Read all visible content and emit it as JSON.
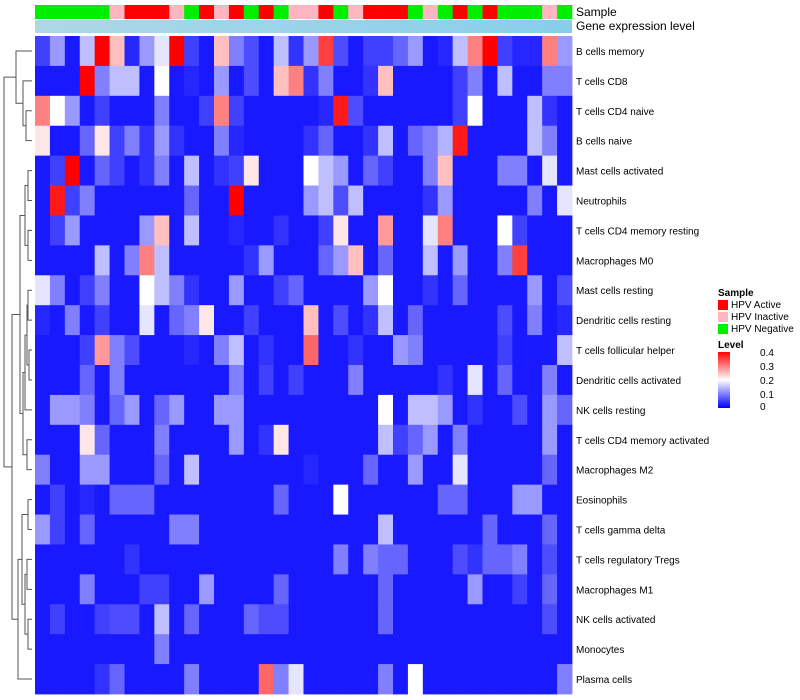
{
  "chart_data": {
    "type": "heatmap",
    "annotation_titles": [
      "Sample",
      "Gene expression level"
    ],
    "rows": [
      "B cells memory",
      "T cells CD8",
      "T cells CD4 naive",
      "B cells naive",
      "Mast cells activated",
      "Neutrophils",
      "T cells CD4 memory resting",
      "Macrophages M0",
      "Mast cells resting",
      "Dendritic cells resting",
      "T cells follicular helper",
      "Dendritic cells activated",
      "NK cells resting",
      "T cells CD4 memory activated",
      "Macrophages M2",
      "Eosinophils",
      "T cells gamma delta",
      "T cells regulatory  Tregs",
      "Macrophages M1",
      "NK cells activated",
      "Monocytes",
      "Plasma cells"
    ],
    "sample_groups": [
      "HPV Negative",
      "HPV Negative",
      "HPV Negative",
      "HPV Negative",
      "HPV Negative",
      "HPV Inactive",
      "HPV Active",
      "HPV Active",
      "HPV Active",
      "HPV Inactive",
      "HPV Negative",
      "HPV Active",
      "HPV Inactive",
      "HPV Active",
      "HPV Negative",
      "HPV Active",
      "HPV Negative",
      "HPV Inactive",
      "HPV Inactive",
      "HPV Active",
      "HPV Negative",
      "HPV Inactive",
      "HPV Active",
      "HPV Active",
      "HPV Active",
      "HPV Negative",
      "HPV Inactive",
      "HPV Negative",
      "HPV Active",
      "HPV Negative",
      "HPV Active",
      "HPV Negative",
      "HPV Negative",
      "HPV Negative",
      "HPV Inactive",
      "HPV Negative"
    ],
    "values": [
      [
        0.05,
        0.12,
        0.02,
        0.15,
        0.4,
        0.25,
        0.03,
        0.12,
        0.18,
        0.4,
        0.05,
        0.02,
        0.25,
        0.1,
        0.06,
        0.02,
        0.15,
        0.04,
        0.12,
        0.35,
        0.06,
        0.02,
        0.05,
        0.05,
        0.08,
        0.12,
        0.02,
        0.03,
        0.15,
        0.3,
        0.4,
        0.05,
        0.03,
        0.03,
        0.3,
        0.12
      ],
      [
        0.02,
        0.02,
        0.02,
        0.4,
        0.1,
        0.15,
        0.15,
        0.02,
        0.2,
        0.02,
        0.03,
        0.02,
        0.12,
        0.02,
        0.06,
        0.02,
        0.25,
        0.3,
        0.04,
        0.1,
        0.02,
        0.02,
        0.04,
        0.25,
        0.02,
        0.02,
        0.02,
        0.02,
        0.05,
        0.1,
        0.02,
        0.15,
        0.02,
        0.02,
        0.1,
        0.1
      ],
      [
        0.3,
        0.2,
        0.12,
        0.02,
        0.05,
        0.02,
        0.02,
        0.02,
        0.1,
        0.02,
        0.02,
        0.05,
        0.3,
        0.05,
        0.02,
        0.02,
        0.02,
        0.02,
        0.02,
        0.03,
        0.38,
        0.06,
        0.02,
        0.02,
        0.02,
        0.02,
        0.02,
        0.02,
        0.05,
        0.2,
        0.02,
        0.02,
        0.02,
        0.15,
        0.04,
        0.02
      ],
      [
        0.22,
        0.02,
        0.02,
        0.08,
        0.22,
        0.05,
        0.1,
        0.04,
        0.12,
        0.04,
        0.02,
        0.02,
        0.1,
        0.03,
        0.02,
        0.02,
        0.02,
        0.02,
        0.04,
        0.08,
        0.02,
        0.02,
        0.04,
        0.15,
        0.02,
        0.08,
        0.1,
        0.14,
        0.38,
        0.02,
        0.02,
        0.02,
        0.02,
        0.15,
        0.1,
        0.02
      ],
      [
        0.02,
        0.05,
        0.4,
        0.02,
        0.08,
        0.05,
        0.02,
        0.04,
        0.1,
        0.02,
        0.15,
        0.02,
        0.04,
        0.05,
        0.22,
        0.02,
        0.02,
        0.02,
        0.2,
        0.15,
        0.12,
        0.02,
        0.08,
        0.05,
        0.02,
        0.02,
        0.1,
        0.25,
        0.02,
        0.02,
        0.02,
        0.1,
        0.1,
        0.02,
        0.18,
        0.02
      ],
      [
        0.02,
        0.38,
        0.05,
        0.1,
        0.02,
        0.02,
        0.02,
        0.02,
        0.02,
        0.02,
        0.08,
        0.02,
        0.02,
        0.4,
        0.02,
        0.02,
        0.02,
        0.02,
        0.12,
        0.15,
        0.06,
        0.15,
        0.02,
        0.02,
        0.02,
        0.02,
        0.04,
        0.12,
        0.02,
        0.02,
        0.02,
        0.02,
        0.02,
        0.1,
        0.02,
        0.18
      ],
      [
        0.02,
        0.05,
        0.12,
        0.02,
        0.02,
        0.02,
        0.02,
        0.12,
        0.25,
        0.02,
        0.15,
        0.02,
        0.02,
        0.03,
        0.02,
        0.02,
        0.04,
        0.02,
        0.02,
        0.05,
        0.22,
        0.02,
        0.02,
        0.28,
        0.02,
        0.02,
        0.18,
        0.3,
        0.02,
        0.02,
        0.02,
        0.2,
        0.05,
        0.02,
        0.02,
        0.02
      ],
      [
        0.02,
        0.02,
        0.02,
        0.02,
        0.15,
        0.02,
        0.1,
        0.3,
        0.15,
        0.02,
        0.02,
        0.02,
        0.02,
        0.02,
        0.04,
        0.12,
        0.02,
        0.02,
        0.02,
        0.08,
        0.12,
        0.25,
        0.02,
        0.08,
        0.02,
        0.02,
        0.15,
        0.02,
        0.12,
        0.02,
        0.02,
        0.1,
        0.35,
        0.02,
        0.02,
        0.02
      ],
      [
        0.18,
        0.1,
        0.02,
        0.05,
        0.1,
        0.02,
        0.02,
        0.2,
        0.15,
        0.1,
        0.04,
        0.02,
        0.02,
        0.12,
        0.02,
        0.02,
        0.05,
        0.08,
        0.02,
        0.02,
        0.02,
        0.02,
        0.12,
        0.2,
        0.02,
        0.02,
        0.04,
        0.02,
        0.08,
        0.02,
        0.02,
        0.02,
        0.02,
        0.12,
        0.02,
        0.06
      ],
      [
        0.03,
        0.02,
        0.1,
        0.02,
        0.05,
        0.02,
        0.02,
        0.18,
        0.02,
        0.08,
        0.1,
        0.22,
        0.02,
        0.02,
        0.05,
        0.02,
        0.02,
        0.02,
        0.25,
        0.02,
        0.06,
        0.02,
        0.04,
        0.15,
        0.02,
        0.08,
        0.02,
        0.02,
        0.02,
        0.02,
        0.02,
        0.06,
        0.02,
        0.1,
        0.02,
        0.03
      ],
      [
        0.02,
        0.02,
        0.02,
        0.05,
        0.28,
        0.1,
        0.06,
        0.02,
        0.02,
        0.02,
        0.03,
        0.02,
        0.1,
        0.15,
        0.02,
        0.04,
        0.02,
        0.02,
        0.32,
        0.02,
        0.02,
        0.04,
        0.02,
        0.02,
        0.12,
        0.1,
        0.02,
        0.02,
        0.02,
        0.02,
        0.02,
        0.05,
        0.02,
        0.02,
        0.02,
        0.15
      ],
      [
        0.02,
        0.02,
        0.02,
        0.08,
        0.02,
        0.1,
        0.02,
        0.02,
        0.02,
        0.02,
        0.02,
        0.02,
        0.02,
        0.1,
        0.02,
        0.05,
        0.02,
        0.05,
        0.02,
        0.02,
        0.02,
        0.1,
        0.02,
        0.02,
        0.02,
        0.02,
        0.02,
        0.04,
        0.02,
        0.18,
        0.02,
        0.08,
        0.02,
        0.02,
        0.1,
        0.02
      ],
      [
        0.02,
        0.12,
        0.12,
        0.1,
        0.02,
        0.08,
        0.12,
        0.02,
        0.08,
        0.12,
        0.02,
        0.02,
        0.12,
        0.12,
        0.02,
        0.02,
        0.02,
        0.02,
        0.02,
        0.02,
        0.02,
        0.02,
        0.02,
        0.2,
        0.02,
        0.15,
        0.15,
        0.12,
        0.02,
        0.04,
        0.02,
        0.02,
        0.06,
        0.02,
        0.12,
        0.08
      ],
      [
        0.02,
        0.02,
        0.02,
        0.22,
        0.08,
        0.02,
        0.02,
        0.02,
        0.1,
        0.02,
        0.02,
        0.02,
        0.02,
        0.12,
        0.02,
        0.04,
        0.22,
        0.02,
        0.02,
        0.02,
        0.02,
        0.02,
        0.02,
        0.15,
        0.05,
        0.08,
        0.12,
        0.02,
        0.1,
        0.02,
        0.02,
        0.02,
        0.02,
        0.02,
        0.12,
        0.02
      ],
      [
        0.1,
        0.02,
        0.02,
        0.12,
        0.12,
        0.02,
        0.02,
        0.02,
        0.08,
        0.02,
        0.15,
        0.02,
        0.02,
        0.02,
        0.02,
        0.02,
        0.02,
        0.02,
        0.03,
        0.02,
        0.02,
        0.02,
        0.08,
        0.02,
        0.02,
        0.12,
        0.02,
        0.02,
        0.18,
        0.02,
        0.02,
        0.02,
        0.02,
        0.02,
        0.08,
        0.02
      ],
      [
        0.02,
        0.05,
        0.02,
        0.03,
        0.02,
        0.08,
        0.08,
        0.08,
        0.02,
        0.02,
        0.02,
        0.02,
        0.02,
        0.02,
        0.02,
        0.02,
        0.08,
        0.02,
        0.02,
        0.02,
        0.2,
        0.02,
        0.02,
        0.02,
        0.02,
        0.02,
        0.02,
        0.08,
        0.08,
        0.02,
        0.02,
        0.02,
        0.12,
        0.12,
        0.02,
        0.02
      ],
      [
        0.12,
        0.05,
        0.02,
        0.08,
        0.02,
        0.02,
        0.02,
        0.02,
        0.02,
        0.1,
        0.1,
        0.02,
        0.02,
        0.02,
        0.02,
        0.02,
        0.02,
        0.02,
        0.02,
        0.02,
        0.02,
        0.02,
        0.02,
        0.15,
        0.02,
        0.02,
        0.02,
        0.02,
        0.02,
        0.02,
        0.08,
        0.02,
        0.02,
        0.02,
        0.08,
        0.02
      ],
      [
        0.02,
        0.02,
        0.02,
        0.02,
        0.02,
        0.02,
        0.04,
        0.02,
        0.02,
        0.02,
        0.02,
        0.02,
        0.02,
        0.02,
        0.02,
        0.02,
        0.02,
        0.02,
        0.02,
        0.02,
        0.1,
        0.02,
        0.1,
        0.08,
        0.08,
        0.02,
        0.02,
        0.02,
        0.06,
        0.04,
        0.08,
        0.08,
        0.1,
        0.02,
        0.06,
        0.02
      ],
      [
        0.02,
        0.02,
        0.02,
        0.1,
        0.02,
        0.02,
        0.02,
        0.05,
        0.05,
        0.02,
        0.02,
        0.12,
        0.02,
        0.02,
        0.02,
        0.02,
        0.08,
        0.02,
        0.02,
        0.02,
        0.02,
        0.02,
        0.02,
        0.08,
        0.02,
        0.02,
        0.02,
        0.02,
        0.02,
        0.12,
        0.02,
        0.02,
        0.05,
        0.02,
        0.08,
        0.02
      ],
      [
        0.02,
        0.05,
        0.02,
        0.02,
        0.05,
        0.06,
        0.06,
        0.02,
        0.15,
        0.02,
        0.08,
        0.02,
        0.02,
        0.02,
        0.08,
        0.06,
        0.06,
        0.02,
        0.02,
        0.02,
        0.02,
        0.02,
        0.02,
        0.08,
        0.02,
        0.02,
        0.02,
        0.02,
        0.02,
        0.02,
        0.02,
        0.02,
        0.02,
        0.02,
        0.06,
        0.02
      ],
      [
        0.02,
        0.02,
        0.02,
        0.02,
        0.02,
        0.02,
        0.02,
        0.02,
        0.1,
        0.02,
        0.02,
        0.02,
        0.02,
        0.02,
        0.02,
        0.02,
        0.02,
        0.02,
        0.02,
        0.02,
        0.02,
        0.02,
        0.02,
        0.02,
        0.02,
        0.02,
        0.02,
        0.02,
        0.02,
        0.02,
        0.02,
        0.02,
        0.02,
        0.02,
        0.02,
        0.02
      ],
      [
        0.02,
        0.02,
        0.02,
        0.02,
        0.04,
        0.08,
        0.02,
        0.02,
        0.02,
        0.02,
        0.1,
        0.02,
        0.02,
        0.02,
        0.02,
        0.32,
        0.1,
        0.18,
        0.02,
        0.02,
        0.02,
        0.02,
        0.02,
        0.1,
        0.02,
        0.2,
        0.02,
        0.02,
        0.02,
        0.02,
        0.02,
        0.02,
        0.02,
        0.02,
        0.02,
        0.1
      ]
    ],
    "sample_legend": {
      "title": "Sample",
      "items": [
        {
          "label": "HPV Active",
          "color": "#ff0000"
        },
        {
          "label": "HPV Inactive",
          "color": "#ffb6c1"
        },
        {
          "label": "HPV Negative",
          "color": "#00ee00"
        }
      ]
    },
    "level_legend": {
      "title": "Level",
      "range": [
        0,
        0.4
      ],
      "ticks": [
        "0.4",
        "0.3",
        "0.2",
        "0.1",
        "0"
      ],
      "colors": {
        "low": "#0000ff",
        "mid": "#ffffff",
        "high": "#ff0000"
      }
    },
    "gene_expression_gradient": [
      "#add8e6",
      "#87ceeb"
    ]
  }
}
